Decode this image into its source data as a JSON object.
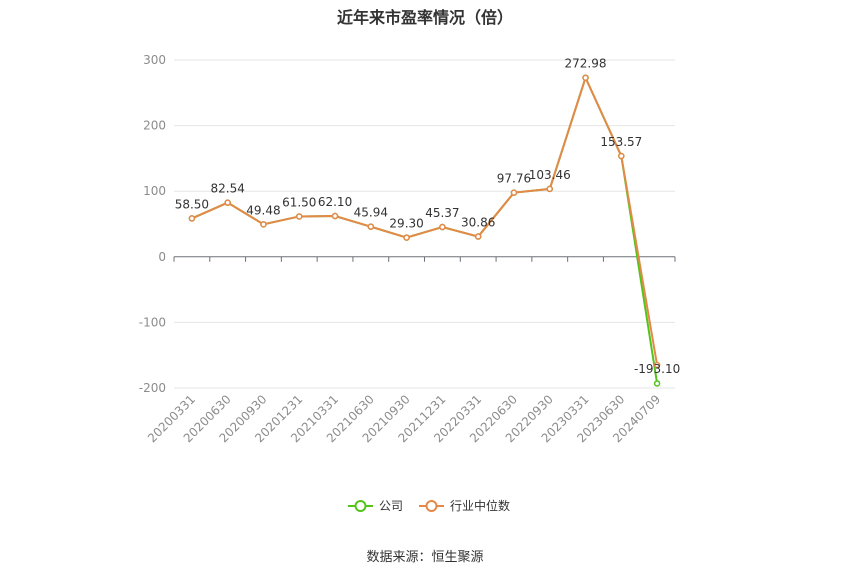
{
  "chart_data": {
    "type": "line",
    "title": "近年来市盈率情况（倍）",
    "categories": [
      "20200331",
      "20200630",
      "20200930",
      "20201231",
      "20210331",
      "20210630",
      "20210930",
      "20211231",
      "20220331",
      "20220630",
      "20220930",
      "20230331",
      "20230630",
      "20240709"
    ],
    "ylim": [
      -200,
      300
    ],
    "yticks": [
      -200,
      -100,
      0,
      100,
      200,
      300
    ],
    "grid": true,
    "legend_position": "bottom",
    "series": [
      {
        "name": "公司",
        "color": "#52c41a",
        "values": [
          58.5,
          82.54,
          49.48,
          61.5,
          62.1,
          45.94,
          29.3,
          45.37,
          30.86,
          97.76,
          103.46,
          272.98,
          153.57,
          -193.1
        ]
      },
      {
        "name": "行业中位数",
        "color": "#e5894a",
        "values": [
          58.5,
          82.54,
          49.48,
          61.5,
          62.1,
          45.94,
          29.3,
          45.37,
          30.86,
          97.76,
          103.46,
          272.98,
          153.57,
          -165
        ]
      }
    ],
    "data_labels": [
      "58.50",
      "82.54",
      "49.48",
      "61.50",
      "62.10",
      "45.94",
      "29.30",
      "45.37",
      "30.86",
      "97.76",
      "103.46",
      "272.98",
      "153.57",
      "-193.10"
    ]
  },
  "footer": "数据来源：恒生聚源"
}
